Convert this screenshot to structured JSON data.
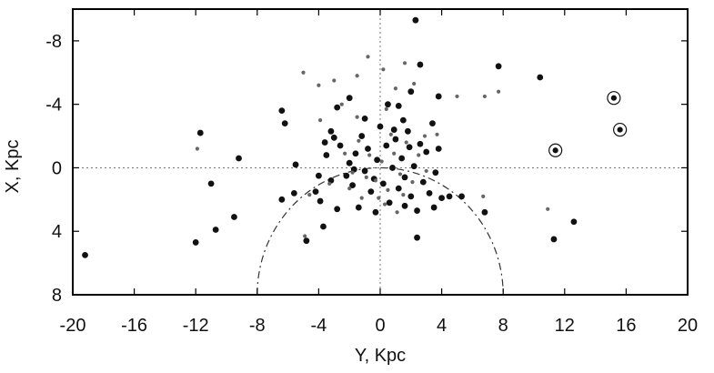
{
  "chart_data": {
    "type": "scatter",
    "xlabel": "Y, Kpc",
    "ylabel": "X, Kpc",
    "xlim": [
      -20,
      20
    ],
    "ylim": [
      8,
      -10
    ],
    "x_ticks": [
      "-20",
      "-16",
      "-12",
      "-8",
      "-4",
      "0",
      "4",
      "8",
      "12",
      "16",
      "20"
    ],
    "y_ticks": [
      "-8",
      "-4",
      "0",
      "4",
      "8"
    ],
    "grid": false,
    "zero_lines": true,
    "circle_center": [
      0,
      8
    ],
    "circle_radius": 8,
    "colors": {
      "axis": "#000000",
      "dark_points": "#111111",
      "grey_points": "#666666",
      "reference_lines": "#777777"
    },
    "series": [
      {
        "marker": "dark-filled-circle",
        "points": [
          [
            -19.2,
            5.5
          ],
          [
            -12.0,
            4.7
          ],
          [
            -10.7,
            3.9
          ],
          [
            -11.7,
            -2.2
          ],
          [
            -11.0,
            1.0
          ],
          [
            -9.5,
            3.1
          ],
          [
            -9.2,
            -0.6
          ],
          [
            -6.4,
            2.0
          ],
          [
            -6.2,
            -2.8
          ],
          [
            -6.4,
            -3.6
          ],
          [
            -5.6,
            1.6
          ],
          [
            -5.5,
            -0.2
          ],
          [
            -4.8,
            4.6
          ],
          [
            -4.2,
            1.5
          ],
          [
            -3.9,
            2.1
          ],
          [
            -3.7,
            3.7
          ],
          [
            -3.5,
            -0.8
          ],
          [
            -3.2,
            0.8
          ],
          [
            -3.0,
            -1.9
          ],
          [
            -2.6,
            -1.4
          ],
          [
            -2.2,
            0.5
          ],
          [
            -2.0,
            -0.3
          ],
          [
            -1.8,
            1.1
          ],
          [
            -1.6,
            -0.9
          ],
          [
            -1.4,
            2.5
          ],
          [
            -1.2,
            -2.0
          ],
          [
            -1.0,
            0.2
          ],
          [
            -0.8,
            -1.2
          ],
          [
            -0.6,
            1.5
          ],
          [
            -0.4,
            0.7
          ],
          [
            -0.2,
            -0.5
          ],
          [
            0.2,
            1.0
          ],
          [
            0.4,
            -1.4
          ],
          [
            0.6,
            2.2
          ],
          [
            0.8,
            0.0
          ],
          [
            1.0,
            -1.8
          ],
          [
            1.2,
            1.3
          ],
          [
            1.4,
            -0.6
          ],
          [
            1.6,
            0.6
          ],
          [
            1.8,
            -2.3
          ],
          [
            2.0,
            1.8
          ],
          [
            2.2,
            -0.1
          ],
          [
            2.4,
            2.7
          ],
          [
            2.6,
            -1.5
          ],
          [
            2.8,
            0.9
          ],
          [
            3.0,
            -1.0
          ],
          [
            3.2,
            1.6
          ],
          [
            3.4,
            -2.8
          ],
          [
            3.6,
            0.3
          ],
          [
            3.8,
            -1.2
          ],
          [
            4.0,
            1.9
          ],
          [
            4.5,
            1.8
          ],
          [
            5.3,
            1.8
          ],
          [
            6.8,
            2.8
          ],
          [
            2.3,
            -9.3
          ],
          [
            2.6,
            -6.5
          ],
          [
            7.7,
            -6.4
          ],
          [
            10.4,
            -5.7
          ],
          [
            11.3,
            4.5
          ],
          [
            12.6,
            3.4
          ],
          [
            -3.2,
            -2.3
          ],
          [
            -2.8,
            -3.8
          ],
          [
            -2.0,
            -4.4
          ],
          [
            -1.0,
            -3.1
          ],
          [
            0.5,
            -4.0
          ],
          [
            1.2,
            -3.9
          ],
          [
            2.0,
            -4.8
          ],
          [
            3.8,
            -4.5
          ],
          [
            0.0,
            -2.6
          ],
          [
            1.5,
            -3.0
          ],
          [
            -3.6,
            -1.6
          ],
          [
            -4.0,
            0.5
          ],
          [
            -2.8,
            2.6
          ],
          [
            -0.3,
            2.8
          ],
          [
            1.6,
            2.4
          ],
          [
            2.4,
            4.4
          ],
          [
            0.9,
            -2.4
          ],
          [
            -1.7,
            0.1
          ],
          [
            1.9,
            -1.3
          ],
          [
            3.5,
            2.5
          ]
        ]
      },
      {
        "marker": "grey-filled-circle",
        "points": [
          [
            -11.9,
            -1.2
          ],
          [
            -5.0,
            -6.0
          ],
          [
            -4.0,
            -5.2
          ],
          [
            -3.0,
            -5.5
          ],
          [
            -1.5,
            -5.8
          ],
          [
            -0.8,
            -7.0
          ],
          [
            0.2,
            -6.2
          ],
          [
            1.0,
            -5.0
          ],
          [
            2.2,
            -5.3
          ],
          [
            1.6,
            -6.6
          ],
          [
            5.0,
            -4.5
          ],
          [
            6.8,
            -4.5
          ],
          [
            7.7,
            -4.8
          ],
          [
            -2.5,
            -4.0
          ],
          [
            -1.8,
            0.3
          ],
          [
            -1.2,
            1.9
          ],
          [
            -0.7,
            -0.8
          ],
          [
            -0.3,
            0.8
          ],
          [
            0.1,
            -0.4
          ],
          [
            0.5,
            1.4
          ],
          [
            0.9,
            -0.9
          ],
          [
            1.3,
            0.4
          ],
          [
            1.7,
            -1.6
          ],
          [
            2.1,
            0.9
          ],
          [
            -2.3,
            -0.9
          ],
          [
            -2.0,
            1.3
          ],
          [
            -1.4,
            -1.7
          ],
          [
            -0.9,
            0.6
          ],
          [
            0.3,
            2.3
          ],
          [
            0.7,
            -2.1
          ],
          [
            1.5,
            1.7
          ],
          [
            2.5,
            -0.8
          ],
          [
            3.0,
            0.2
          ],
          [
            -3.3,
            1.0
          ],
          [
            -4.6,
            1.7
          ],
          [
            -4.9,
            4.3
          ],
          [
            -0.1,
            1.9
          ],
          [
            1.1,
            2.8
          ],
          [
            6.7,
            1.8
          ],
          [
            10.9,
            2.6
          ],
          [
            3.7,
            -2.1
          ],
          [
            -3.9,
            -3.0
          ],
          [
            0.4,
            -3.7
          ],
          [
            2.9,
            -2.0
          ],
          [
            -1.5,
            -3.2
          ]
        ]
      },
      {
        "marker": "ringed-point",
        "points": [
          [
            11.4,
            -1.1
          ],
          [
            15.2,
            -4.4
          ],
          [
            15.6,
            -2.4
          ]
        ]
      }
    ]
  }
}
